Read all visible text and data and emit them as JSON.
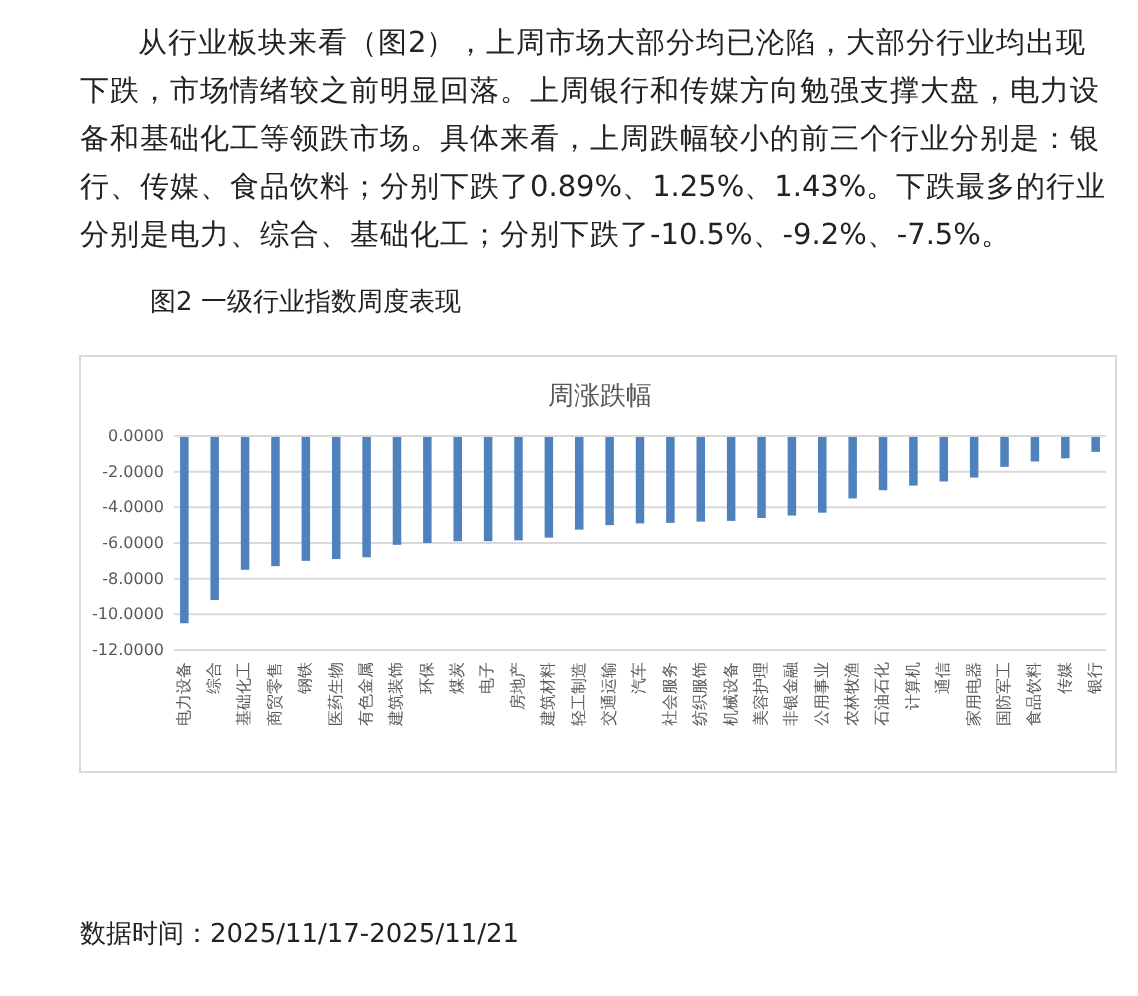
{
  "chart_data": {
    "type": "bar",
    "title": "周涨跌幅",
    "subtitle": "图2 一级行业指数周度表现",
    "annotations": [
      "从行业板块来看（图2），上周市场大部分均已沦陷，大部分行业均出现下跌，市场情绪较之前明显回落。上周银行和传媒方向勉强支撑大盘，电力设备和基础化工等领跌市场。具体来看，上周跌幅较小的前三个行业分别是：银行、传媒、食品饮料；分别下跌了0.89%、1.25%、1.43%。下跌最多的行业分别是电力、综合、基础化工；分别下跌了-10.5%、-9.2%、-7.5%。",
      "数据时间：2025/11/17-2025/11/21"
    ],
    "categories": [
      "电力设备",
      "综合",
      "基础化工",
      "商贸零售",
      "钢铁",
      "医药生物",
      "有色金属",
      "建筑装饰",
      "环保",
      "煤炭",
      "电子",
      "房地产",
      "建筑材料",
      "轻工制造",
      "交通运输",
      "汽车",
      "社会服务",
      "纺织服饰",
      "机械设备",
      "美容护理",
      "非银金融",
      "公用事业",
      "农林牧渔",
      "石油石化",
      "计算机",
      "通信",
      "家用电器",
      "国防军工",
      "食品饮料",
      "传媒",
      "银行"
    ],
    "values": [
      -10.5,
      -9.2,
      -7.5,
      -7.3,
      -7.0,
      -6.9,
      -6.8,
      -6.1,
      -6.0,
      -5.9,
      -5.9,
      -5.85,
      -5.7,
      -5.25,
      -5.0,
      -4.9,
      -4.87,
      -4.8,
      -4.76,
      -4.6,
      -4.46,
      -4.3,
      -3.5,
      -3.04,
      -2.78,
      -2.55,
      -2.33,
      -1.73,
      -1.43,
      -1.25,
      -0.89
    ],
    "color": "#4f81bd",
    "ylim": [
      -12,
      0
    ],
    "yticks": [
      {
        "value": 0,
        "label": "0.0000"
      },
      {
        "value": -2,
        "label": "-2.0000"
      },
      {
        "value": -4,
        "label": "-4.0000"
      },
      {
        "value": -6,
        "label": "-6.0000"
      },
      {
        "value": -8,
        "label": "-8.0000"
      },
      {
        "value": -10,
        "label": "-10.0000"
      },
      {
        "value": -12,
        "label": "-12.0000"
      }
    ],
    "grid": "y"
  }
}
